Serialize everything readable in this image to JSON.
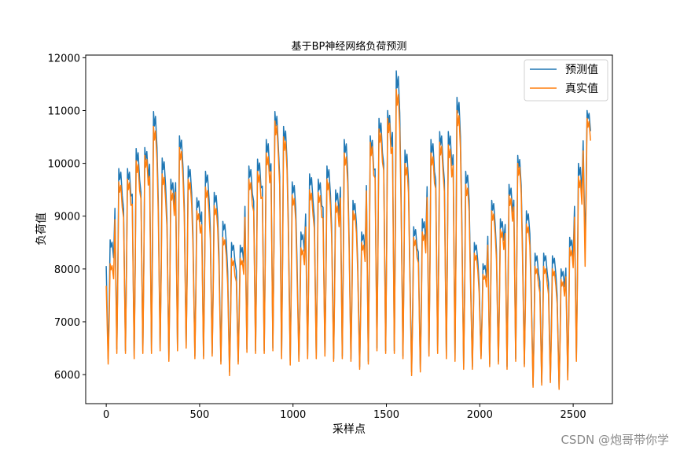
{
  "chart_data": {
    "type": "line",
    "title": "基于BP神经网络负荷预测",
    "xlabel": "采样点",
    "ylabel": "负荷值",
    "xlim": [
      -110,
      2710
    ],
    "ylim": [
      5450,
      12050
    ],
    "xticks": [
      0,
      500,
      1000,
      1500,
      2000,
      2500
    ],
    "yticks": [
      6000,
      7000,
      8000,
      9000,
      10000,
      11000,
      12000
    ],
    "grid": false,
    "legend_position": "top-right",
    "series": [
      {
        "name": "预测值",
        "color": "#1f77b4",
        "cycles": [
          [
            8550,
            6300
          ],
          [
            9900,
            6480
          ],
          [
            9900,
            6450
          ],
          [
            10280,
            6350
          ],
          [
            10300,
            6450
          ],
          [
            10980,
            6450
          ],
          [
            10100,
            6500
          ],
          [
            9700,
            6300
          ],
          [
            10520,
            6500
          ],
          [
            9950,
            6550
          ],
          [
            9350,
            6350
          ],
          [
            9850,
            6350
          ],
          [
            9450,
            6400
          ],
          [
            8900,
            6250
          ],
          [
            8500,
            6050
          ],
          [
            8450,
            6250
          ],
          [
            9950,
            6480
          ],
          [
            10080,
            6450
          ],
          [
            10450,
            6450
          ],
          [
            10980,
            6500
          ],
          [
            10700,
            6350
          ],
          [
            9650,
            6250
          ],
          [
            8700,
            6300
          ],
          [
            9800,
            6350
          ],
          [
            9700,
            6350
          ],
          [
            9950,
            6400
          ],
          [
            9500,
            6300
          ],
          [
            10450,
            6350
          ],
          [
            9300,
            6300
          ],
          [
            8700,
            6150
          ],
          [
            10520,
            6250
          ],
          [
            10850,
            6500
          ],
          [
            11000,
            6450
          ],
          [
            11750,
            6450
          ],
          [
            10250,
            6350
          ],
          [
            8800,
            6050
          ],
          [
            8950,
            6100
          ],
          [
            10450,
            6400
          ],
          [
            10600,
            6450
          ],
          [
            10600,
            6350
          ],
          [
            11250,
            6300
          ],
          [
            9850,
            6150
          ],
          [
            8500,
            6150
          ],
          [
            8100,
            6350
          ],
          [
            9300,
            6200
          ],
          [
            8950,
            6250
          ],
          [
            9600,
            6150
          ],
          [
            10150,
            6300
          ],
          [
            9100,
            6200
          ],
          [
            8300,
            5800
          ],
          [
            8300,
            5850
          ],
          [
            8250,
            5900
          ],
          [
            8000,
            5750
          ],
          [
            8600,
            5950
          ],
          [
            10000,
            6300
          ],
          [
            11000,
            8400
          ]
        ]
      },
      {
        "name": "真实值",
        "color": "#ff7f0e",
        "cycles": [
          [
            8100,
            6200
          ],
          [
            9650,
            6400
          ],
          [
            9700,
            6400
          ],
          [
            10050,
            6300
          ],
          [
            10150,
            6400
          ],
          [
            10700,
            6400
          ],
          [
            9800,
            6450
          ],
          [
            9500,
            6250
          ],
          [
            10300,
            6450
          ],
          [
            9700,
            6500
          ],
          [
            9100,
            6300
          ],
          [
            9550,
            6300
          ],
          [
            9200,
            6350
          ],
          [
            8600,
            6200
          ],
          [
            8200,
            5980
          ],
          [
            8200,
            6200
          ],
          [
            9700,
            6420
          ],
          [
            9850,
            6400
          ],
          [
            10200,
            6400
          ],
          [
            10800,
            6450
          ],
          [
            10500,
            6300
          ],
          [
            9400,
            6180
          ],
          [
            8400,
            6250
          ],
          [
            9500,
            6300
          ],
          [
            9450,
            6300
          ],
          [
            9700,
            6350
          ],
          [
            9250,
            6250
          ],
          [
            10200,
            6300
          ],
          [
            9100,
            6250
          ],
          [
            8500,
            6100
          ],
          [
            10400,
            6200
          ],
          [
            10650,
            6450
          ],
          [
            10850,
            6400
          ],
          [
            11400,
            6400
          ],
          [
            10000,
            6300
          ],
          [
            8600,
            5980
          ],
          [
            8700,
            6050
          ],
          [
            10200,
            6350
          ],
          [
            10400,
            6400
          ],
          [
            10350,
            6300
          ],
          [
            11000,
            6250
          ],
          [
            9600,
            6100
          ],
          [
            8300,
            6100
          ],
          [
            7900,
            6300
          ],
          [
            9100,
            6150
          ],
          [
            8750,
            6200
          ],
          [
            9400,
            6100
          ],
          [
            10000,
            6250
          ],
          [
            8850,
            6150
          ],
          [
            8050,
            5760
          ],
          [
            8050,
            5800
          ],
          [
            8000,
            5850
          ],
          [
            7800,
            5720
          ],
          [
            8400,
            5900
          ],
          [
            9750,
            6250
          ],
          [
            10850,
            8050
          ]
        ]
      }
    ]
  },
  "watermark": "CSDN @炮哥带你学"
}
